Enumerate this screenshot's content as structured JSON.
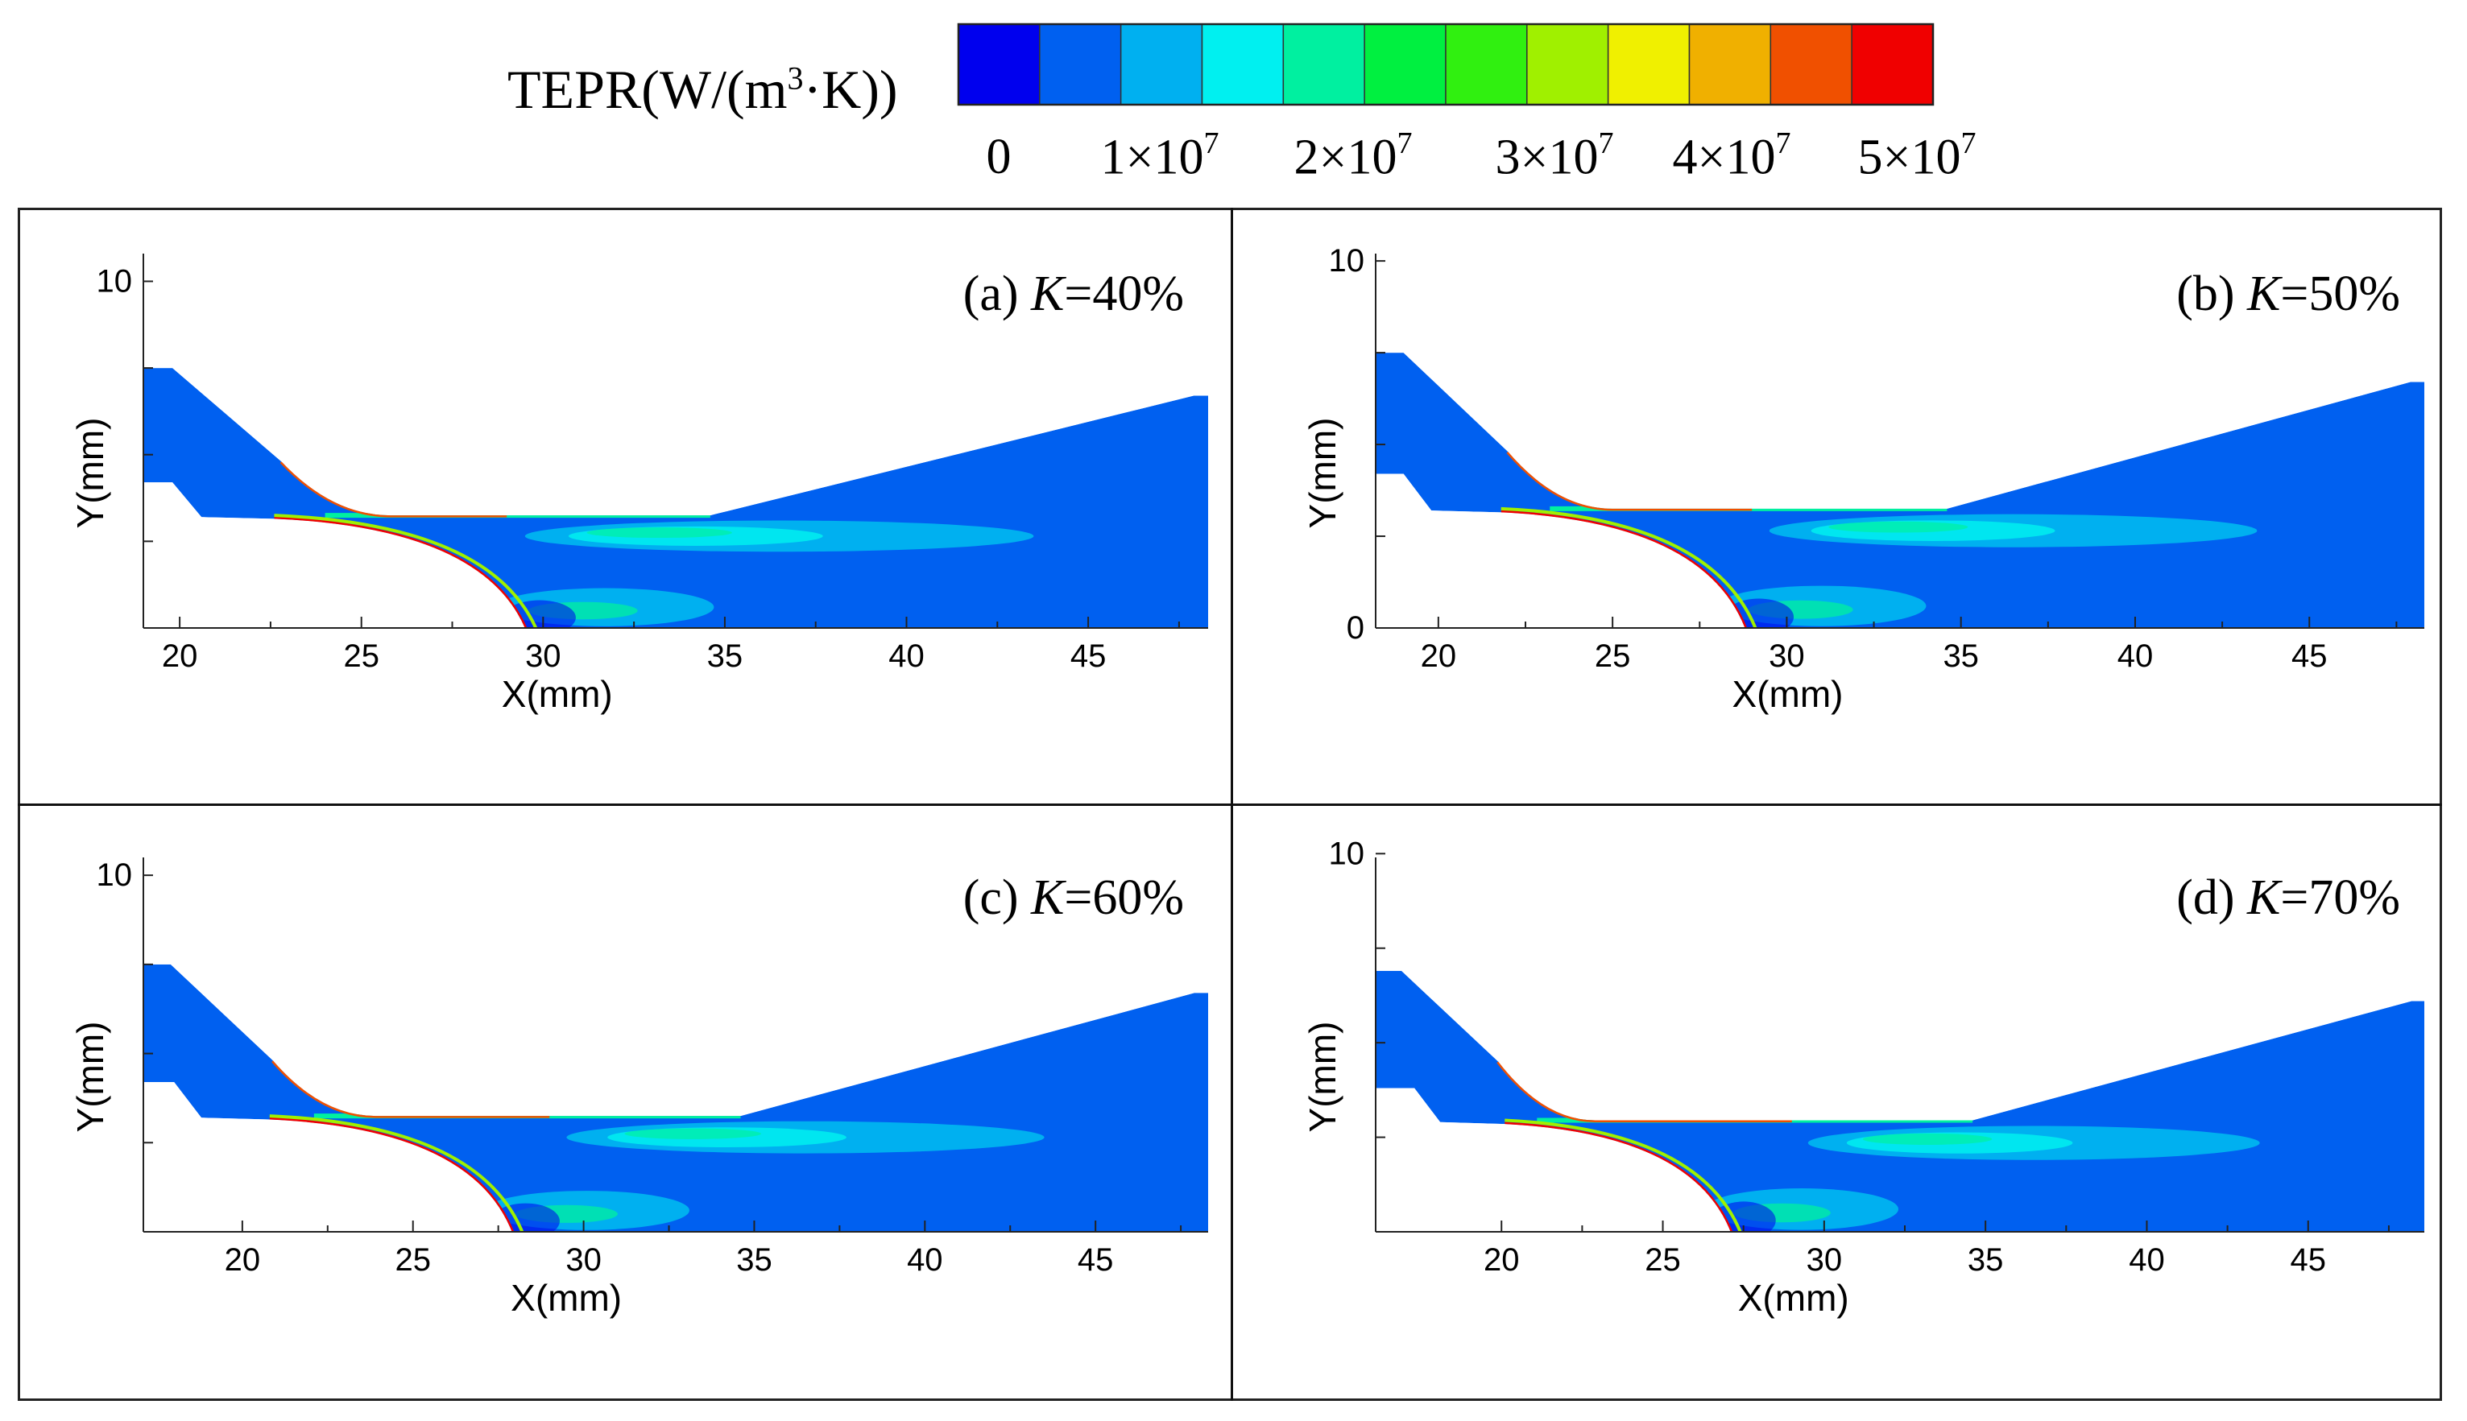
{
  "chart_data": {
    "type": "heatmap",
    "colorbar": {
      "title_prefix": "TEPR(W/(m",
      "title_sup": "3",
      "title_suffix": "·K))",
      "ticks": [
        {
          "label": "0",
          "exp": ""
        },
        {
          "label": "1×10",
          "exp": "7"
        },
        {
          "label": "2×10",
          "exp": "7"
        },
        {
          "label": "3×10",
          "exp": "7"
        },
        {
          "label": "4×10",
          "exp": "7"
        },
        {
          "label": "5×10",
          "exp": "7"
        }
      ],
      "tick_values": [
        0,
        10000000,
        20000000,
        30000000,
        40000000,
        50000000
      ],
      "levels": [
        "#0000ee",
        "#0060f0",
        "#00b0f0",
        "#00f0f0",
        "#00f0a0",
        "#00f040",
        "#30f010",
        "#a0f000",
        "#f0f000",
        "#f0b000",
        "#f05000",
        "#f00000"
      ]
    },
    "panels": [
      {
        "id": "a",
        "title_prefix": "(a) ",
        "title_var": "K",
        "title_value": "=40%",
        "xlabel": "X(mm)",
        "ylabel": "Y(mm)",
        "xlim": [
          19,
          48.3
        ],
        "ylim": [
          0,
          10.8
        ],
        "xticks": [
          "20",
          "25",
          "30",
          "35",
          "40",
          "45"
        ],
        "yticks": [
          "10"
        ],
        "inlet_top": 7.5,
        "inlet_bottom": 4.2,
        "step_x": 20.6,
        "step_y": 3.2,
        "throat_x": 29.5,
        "throat_top": 3.2,
        "exit_top": 6.7
      },
      {
        "id": "b",
        "title_prefix": "(b) ",
        "title_var": "K",
        "title_value": "=50%",
        "xlabel": "X(mm)",
        "ylabel": "Y(mm)",
        "xlim": [
          18.2,
          48.3
        ],
        "ylim": [
          0,
          10.2
        ],
        "xticks": [
          "20",
          "25",
          "30",
          "35",
          "40",
          "45"
        ],
        "yticks": [
          "0",
          "10"
        ],
        "inlet_top": 7.5,
        "inlet_bottom": 4.2,
        "step_x": 19.8,
        "step_y": 3.2,
        "throat_x": 28.8,
        "throat_top": 3.2,
        "exit_top": 6.7
      },
      {
        "id": "c",
        "title_prefix": "(c) ",
        "title_var": "K",
        "title_value": "=60%",
        "xlabel": "X(mm)",
        "ylabel": "Y(mm)",
        "xlim": [
          17.1,
          48.3
        ],
        "ylim": [
          0,
          10.5
        ],
        "xticks": [
          "20",
          "25",
          "30",
          "35",
          "40",
          "45"
        ],
        "yticks": [
          "10"
        ],
        "inlet_top": 7.5,
        "inlet_bottom": 4.2,
        "step_x": 18.8,
        "step_y": 3.2,
        "throat_x": 27.9,
        "throat_top": 3.2,
        "exit_top": 6.7
      },
      {
        "id": "d",
        "title_prefix": "(d) ",
        "title_var": "K",
        "title_value": "=70%",
        "xlabel": "X(mm)",
        "ylabel": "Y(mm)",
        "xlim": [
          16.1,
          48.6
        ],
        "ylim": [
          0,
          9.9
        ],
        "xticks": [
          "20",
          "25",
          "30",
          "35",
          "40",
          "45"
        ],
        "yticks": [
          "10"
        ],
        "inlet_top": 6.9,
        "inlet_bottom": 3.8,
        "step_x": 18.1,
        "step_y": 2.9,
        "throat_x": 27.1,
        "throat_top": 2.9,
        "exit_top": 6.1
      }
    ]
  }
}
